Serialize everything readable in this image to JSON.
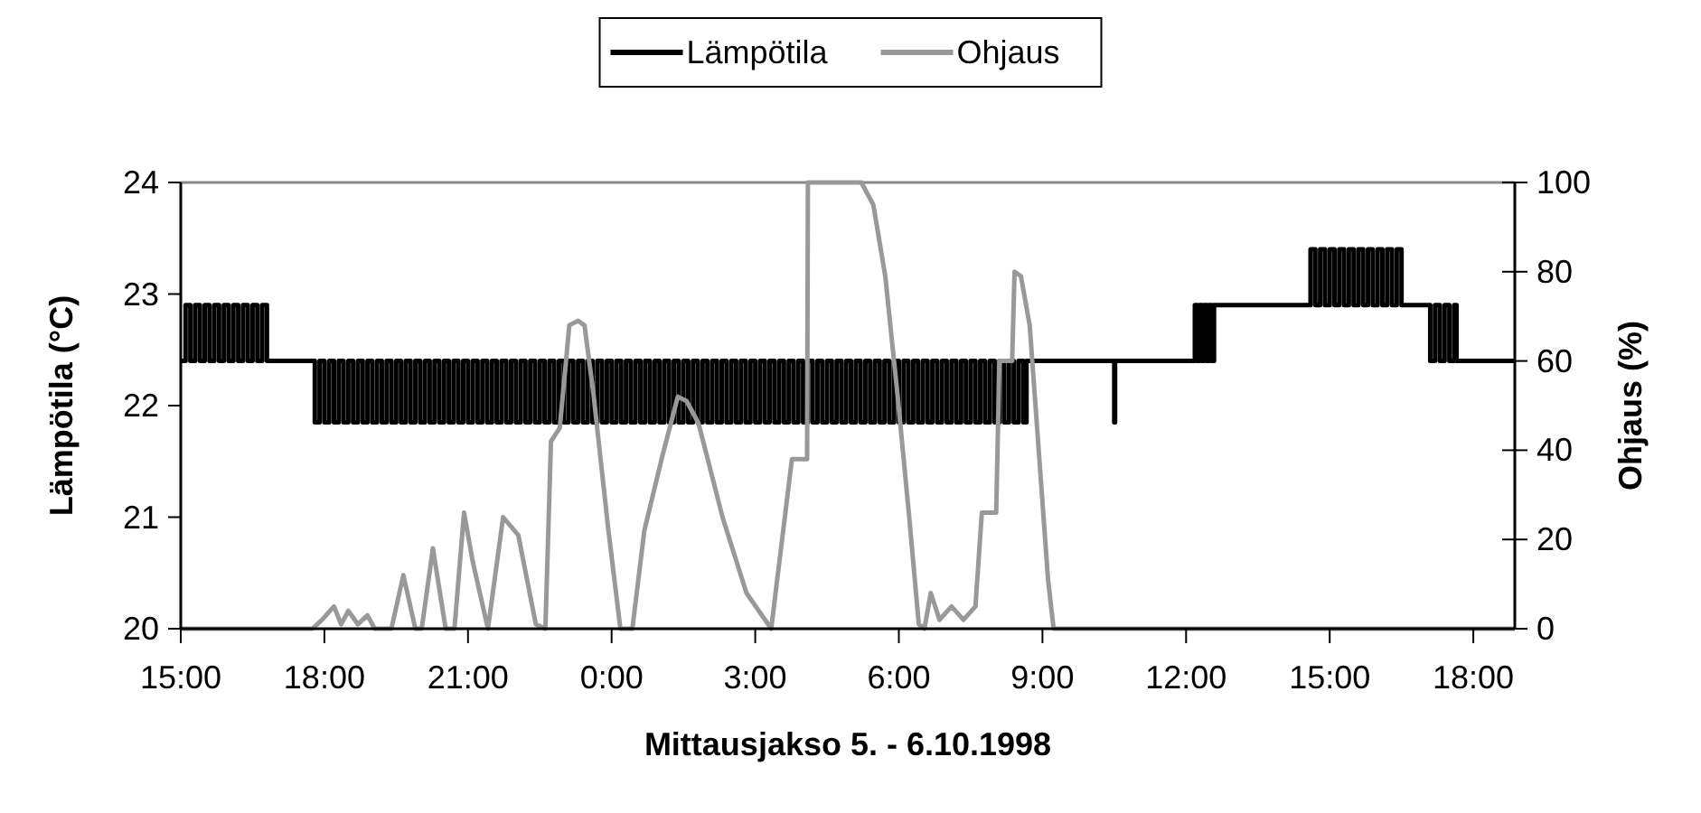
{
  "chart_data": {
    "type": "line",
    "xlabel": "Mittausjakso 5. - 6.10.1998",
    "ylabel": "Lämpötila (°C)",
    "y2label": "Ohjaus (%)",
    "legend": "top",
    "xlim": [
      "1998-10-05T15:00",
      "1998-10-06T18:52"
    ],
    "xticks": [
      {
        "value": "1998-10-05T15:00",
        "label": "15:00"
      },
      {
        "value": "1998-10-05T18:00",
        "label": "18:00"
      },
      {
        "value": "1998-10-05T21:00",
        "label": "21:00"
      },
      {
        "value": "1998-10-06T00:00",
        "label": "0:00"
      },
      {
        "value": "1998-10-06T03:00",
        "label": "3:00"
      },
      {
        "value": "1998-10-06T06:00",
        "label": "6:00"
      },
      {
        "value": "1998-10-06T09:00",
        "label": "9:00"
      },
      {
        "value": "1998-10-06T12:00",
        "label": "12:00"
      },
      {
        "value": "1998-10-06T15:00",
        "label": "15:00"
      },
      {
        "value": "1998-10-06T18:00",
        "label": "18:00"
      }
    ],
    "ylim": [
      20,
      24
    ],
    "yticks": [
      20,
      21,
      22,
      23,
      24
    ],
    "y2lim": [
      0,
      100
    ],
    "y2ticks": [
      0,
      20,
      40,
      60,
      80,
      100
    ],
    "series": [
      {
        "name": "Lämpötila",
        "color": "#000000",
        "type": "step",
        "x": [
          "1998-10-05T15:00",
          "1998-10-05T15:06",
          "1998-10-05T15:12",
          "1998-10-05T15:18",
          "1998-10-05T15:24",
          "1998-10-05T15:30",
          "1998-10-05T15:36",
          "1998-10-05T15:42",
          "1998-10-05T15:48",
          "1998-10-05T15:54",
          "1998-10-05T16:00",
          "1998-10-05T16:06",
          "1998-10-05T16:12",
          "1998-10-05T16:18",
          "1998-10-05T16:24",
          "1998-10-05T16:30",
          "1998-10-05T16:36",
          "1998-10-05T16:42",
          "1998-10-05T16:48",
          "1998-10-05T17:43",
          "1998-10-05T17:48",
          "1998-10-05T17:54",
          "1998-10-05T18:00",
          "1998-10-05T18:06",
          "1998-10-05T18:12",
          "1998-10-05T18:18",
          "1998-10-05T18:24",
          "1998-10-05T18:30",
          "1998-10-05T18:36",
          "1998-10-05T18:42",
          "1998-10-05T18:48",
          "1998-10-05T18:54",
          "1998-10-05T19:00",
          "1998-10-05T19:06",
          "1998-10-05T19:12",
          "1998-10-05T19:18",
          "1998-10-05T19:24",
          "1998-10-05T19:30",
          "1998-10-05T19:36",
          "1998-10-05T19:42",
          "1998-10-05T19:48",
          "1998-10-05T19:54",
          "1998-10-05T20:00",
          "1998-10-05T20:06",
          "1998-10-05T20:12",
          "1998-10-05T20:18",
          "1998-10-05T20:24",
          "1998-10-05T20:30",
          "1998-10-05T20:36",
          "1998-10-05T20:42",
          "1998-10-05T20:48",
          "1998-10-05T20:54",
          "1998-10-05T21:00",
          "1998-10-05T21:06",
          "1998-10-05T21:12",
          "1998-10-05T21:18",
          "1998-10-05T21:24",
          "1998-10-05T21:30",
          "1998-10-05T21:36",
          "1998-10-05T21:42",
          "1998-10-05T21:48",
          "1998-10-05T21:54",
          "1998-10-05T22:00",
          "1998-10-05T22:06",
          "1998-10-05T22:12",
          "1998-10-05T22:18",
          "1998-10-05T22:24",
          "1998-10-05T22:30",
          "1998-10-05T22:36",
          "1998-10-05T22:42",
          "1998-10-05T22:48",
          "1998-10-05T22:54",
          "1998-10-05T23:00",
          "1998-10-05T23:06",
          "1998-10-05T23:12",
          "1998-10-05T23:18",
          "1998-10-05T23:24",
          "1998-10-05T23:30",
          "1998-10-05T23:36",
          "1998-10-05T23:42",
          "1998-10-05T23:48",
          "1998-10-05T23:54",
          "1998-10-06T00:00",
          "1998-10-06T00:06",
          "1998-10-06T00:12",
          "1998-10-06T00:18",
          "1998-10-06T00:24",
          "1998-10-06T00:30",
          "1998-10-06T00:36",
          "1998-10-06T00:42",
          "1998-10-06T00:48",
          "1998-10-06T00:54",
          "1998-10-06T01:00",
          "1998-10-06T01:06",
          "1998-10-06T01:12",
          "1998-10-06T01:18",
          "1998-10-06T01:24",
          "1998-10-06T01:30",
          "1998-10-06T01:36",
          "1998-10-06T01:42",
          "1998-10-06T01:48",
          "1998-10-06T01:54",
          "1998-10-06T02:00",
          "1998-10-06T02:06",
          "1998-10-06T02:12",
          "1998-10-06T02:18",
          "1998-10-06T02:24",
          "1998-10-06T02:30",
          "1998-10-06T02:36",
          "1998-10-06T02:42",
          "1998-10-06T02:48",
          "1998-10-06T02:54",
          "1998-10-06T03:00",
          "1998-10-06T03:06",
          "1998-10-06T03:12",
          "1998-10-06T03:18",
          "1998-10-06T03:24",
          "1998-10-06T03:30",
          "1998-10-06T03:36",
          "1998-10-06T03:42",
          "1998-10-06T03:48",
          "1998-10-06T03:54",
          "1998-10-06T04:00",
          "1998-10-06T04:06",
          "1998-10-06T04:12",
          "1998-10-06T04:18",
          "1998-10-06T04:24",
          "1998-10-06T04:30",
          "1998-10-06T04:36",
          "1998-10-06T04:42",
          "1998-10-06T04:48",
          "1998-10-06T04:54",
          "1998-10-06T05:00",
          "1998-10-06T05:06",
          "1998-10-06T05:12",
          "1998-10-06T05:18",
          "1998-10-06T05:24",
          "1998-10-06T05:30",
          "1998-10-06T05:36",
          "1998-10-06T05:42",
          "1998-10-06T05:48",
          "1998-10-06T05:54",
          "1998-10-06T06:00",
          "1998-10-06T06:06",
          "1998-10-06T06:12",
          "1998-10-06T06:18",
          "1998-10-06T06:24",
          "1998-10-06T06:30",
          "1998-10-06T06:36",
          "1998-10-06T06:42",
          "1998-10-06T06:48",
          "1998-10-06T06:54",
          "1998-10-06T07:00",
          "1998-10-06T07:06",
          "1998-10-06T07:12",
          "1998-10-06T07:18",
          "1998-10-06T07:24",
          "1998-10-06T07:30",
          "1998-10-06T07:36",
          "1998-10-06T07:42",
          "1998-10-06T07:48",
          "1998-10-06T07:54",
          "1998-10-06T08:00",
          "1998-10-06T08:06",
          "1998-10-06T08:12",
          "1998-10-06T08:18",
          "1998-10-06T08:24",
          "1998-10-06T08:30",
          "1998-10-06T08:36",
          "1998-10-06T08:40",
          "1998-10-06T10:29",
          "1998-10-06T10:30",
          "1998-10-06T10:31",
          "1998-10-06T12:08",
          "1998-10-06T12:11",
          "1998-10-06T12:14",
          "1998-10-06T12:17",
          "1998-10-06T12:20",
          "1998-10-06T12:23",
          "1998-10-06T12:26",
          "1998-10-06T12:29",
          "1998-10-06T12:32",
          "1998-10-06T12:35",
          "1998-10-06T14:33",
          "1998-10-06T14:36",
          "1998-10-06T14:42",
          "1998-10-06T14:48",
          "1998-10-06T14:54",
          "1998-10-06T15:00",
          "1998-10-06T15:06",
          "1998-10-06T15:12",
          "1998-10-06T15:18",
          "1998-10-06T15:24",
          "1998-10-06T15:30",
          "1998-10-06T15:36",
          "1998-10-06T15:42",
          "1998-10-06T15:48",
          "1998-10-06T15:54",
          "1998-10-06T16:00",
          "1998-10-06T16:06",
          "1998-10-06T16:12",
          "1998-10-06T16:18",
          "1998-10-06T16:24",
          "1998-10-06T16:30",
          "1998-10-06T17:02",
          "1998-10-06T17:06",
          "1998-10-06T17:12",
          "1998-10-06T17:18",
          "1998-10-06T17:24",
          "1998-10-06T17:30",
          "1998-10-06T17:36",
          "1998-10-06T17:39",
          "1998-10-06T18:52"
        ],
        "values": [
          22.4,
          22.9,
          22.4,
          22.9,
          22.4,
          22.9,
          22.4,
          22.9,
          22.4,
          22.9,
          22.4,
          22.9,
          22.4,
          22.9,
          22.4,
          22.9,
          22.4,
          22.9,
          22.4,
          22.4,
          21.85,
          22.4,
          21.85,
          22.4,
          21.85,
          22.4,
          21.85,
          22.4,
          21.85,
          22.4,
          21.85,
          22.4,
          21.85,
          22.4,
          21.85,
          22.4,
          21.85,
          22.4,
          21.85,
          22.4,
          21.85,
          22.4,
          21.85,
          22.4,
          21.85,
          22.4,
          21.85,
          22.4,
          21.85,
          22.4,
          21.85,
          22.4,
          21.85,
          22.4,
          21.85,
          22.4,
          21.85,
          22.4,
          21.85,
          22.4,
          21.85,
          22.4,
          21.85,
          22.4,
          21.85,
          22.4,
          21.85,
          22.4,
          21.85,
          22.4,
          21.85,
          22.4,
          21.85,
          22.4,
          21.85,
          22.4,
          21.85,
          22.4,
          21.85,
          22.4,
          21.85,
          22.4,
          21.85,
          22.4,
          21.85,
          22.4,
          21.85,
          22.4,
          21.85,
          22.4,
          21.85,
          22.4,
          21.85,
          22.4,
          21.85,
          22.4,
          21.85,
          22.4,
          21.85,
          22.4,
          21.85,
          22.4,
          21.85,
          22.4,
          21.85,
          22.4,
          21.85,
          22.4,
          21.85,
          22.4,
          21.85,
          22.4,
          21.85,
          22.4,
          21.85,
          22.4,
          21.85,
          22.4,
          21.85,
          22.4,
          21.85,
          22.4,
          21.85,
          22.4,
          21.85,
          22.4,
          21.85,
          22.4,
          21.85,
          22.4,
          21.85,
          22.4,
          21.85,
          22.4,
          21.85,
          22.4,
          21.85,
          22.4,
          21.85,
          22.4,
          21.85,
          22.4,
          21.85,
          22.4,
          21.85,
          22.4,
          21.85,
          22.4,
          21.85,
          22.4,
          21.85,
          22.4,
          21.85,
          22.4,
          21.85,
          22.4,
          21.85,
          22.4,
          21.85,
          22.4,
          21.85,
          22.4,
          21.85,
          22.4,
          21.85,
          22.4,
          21.85,
          22.4,
          21.85,
          22.4,
          22.4,
          21.85,
          22.4,
          22.4,
          22.9,
          22.4,
          22.9,
          22.4,
          22.9,
          22.4,
          22.9,
          22.4,
          22.9,
          22.9,
          23.4,
          22.9,
          23.4,
          22.9,
          23.4,
          22.9,
          23.4,
          22.9,
          23.4,
          22.9,
          23.4,
          22.9,
          23.4,
          22.9,
          23.4,
          22.9,
          23.4,
          22.9,
          23.4,
          22.9,
          22.9,
          22.4,
          22.9,
          22.4,
          22.9,
          22.4,
          22.9,
          22.4,
          22.4
        ]
      },
      {
        "name": "Ohjaus",
        "color": "#999999",
        "axis": "y2",
        "x": [
          "1998-10-05T15:00",
          "1998-10-05T17:45",
          "1998-10-05T17:57",
          "1998-10-05T18:12",
          "1998-10-05T18:21",
          "1998-10-05T18:30",
          "1998-10-05T18:42",
          "1998-10-05T18:54",
          "1998-10-05T19:03",
          "1998-10-05T19:24",
          "1998-10-05T19:39",
          "1998-10-05T19:54",
          "1998-10-05T20:02",
          "1998-10-05T20:16",
          "1998-10-05T20:32",
          "1998-10-05T20:43",
          "1998-10-05T20:55",
          "1998-10-05T21:06",
          "1998-10-05T21:25",
          "1998-10-05T21:44",
          "1998-10-05T22:03",
          "1998-10-05T22:25",
          "1998-10-05T22:37",
          "1998-10-05T22:44",
          "1998-10-05T22:55",
          "1998-10-05T23:07",
          "1998-10-05T23:18",
          "1998-10-05T23:26",
          "1998-10-05T23:37",
          "1998-10-05T23:56",
          "1998-10-06T00:11",
          "1998-10-06T00:26",
          "1998-10-06T00:41",
          "1998-10-06T01:04",
          "1998-10-06T01:23",
          "1998-10-06T01:34",
          "1998-10-06T01:49",
          "1998-10-06T02:19",
          "1998-10-06T02:49",
          "1998-10-06T03:20",
          "1998-10-06T03:46",
          "1998-10-06T04:05",
          "1998-10-06T04:06",
          "1998-10-06T05:13",
          "1998-10-06T05:28",
          "1998-10-06T05:43",
          "1998-10-06T05:58",
          "1998-10-06T06:13",
          "1998-10-06T06:25",
          "1998-10-06T06:32",
          "1998-10-06T06:40",
          "1998-10-06T06:51",
          "1998-10-06T07:06",
          "1998-10-06T07:21",
          "1998-10-06T07:36",
          "1998-10-06T07:44",
          "1998-10-06T08:02",
          "1998-10-06T08:06",
          "1998-10-06T08:22",
          "1998-10-06T08:25",
          "1998-10-06T08:33",
          "1998-10-06T08:44",
          "1998-10-06T09:07",
          "1998-10-06T09:14",
          "1998-10-06T18:52"
        ],
        "values": [
          0,
          0,
          2,
          5,
          1,
          4,
          1,
          3,
          0,
          0,
          12,
          0,
          0,
          18,
          0,
          0,
          26,
          15,
          0,
          25,
          21,
          1,
          0,
          42,
          45,
          68,
          69,
          68,
          53,
          22,
          0,
          0,
          22,
          39,
          52,
          51,
          46,
          25,
          8,
          0,
          38,
          38,
          100,
          100,
          95,
          79,
          53,
          25,
          1,
          0,
          8,
          2,
          5,
          2,
          5,
          26,
          26,
          60,
          60,
          80,
          79,
          68,
          11,
          0,
          0
        ]
      }
    ]
  }
}
